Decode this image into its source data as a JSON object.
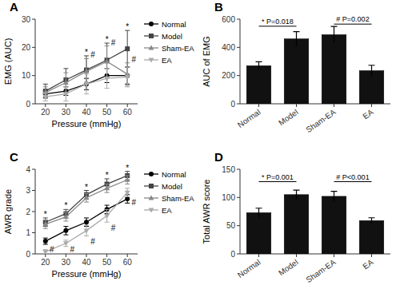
{
  "chart_data": [
    {
      "type": "line",
      "title": "A",
      "x": [
        20,
        30,
        40,
        50,
        60
      ],
      "xlim": [
        15,
        65
      ],
      "xticks": [
        20,
        30,
        40,
        50,
        60
      ],
      "ylim": [
        0,
        30
      ],
      "yticks": [
        0,
        10,
        20,
        30
      ],
      "x_label": "Pressure (mmHg)",
      "y_label": "EMG (AUC)",
      "legend": "right",
      "series": [
        {
          "name": "Normal",
          "color": "#000000",
          "marker": "circle",
          "values": [
            3.5,
            4.5,
            7.0,
            10.0,
            10.0
          ],
          "errors": [
            1.2,
            1.5,
            2.0,
            2.5,
            3.0
          ]
        },
        {
          "name": "Model",
          "color": "#444444",
          "marker": "square",
          "values": [
            4.5,
            8.5,
            12.0,
            15.5,
            19.5
          ],
          "errors": [
            2.5,
            4.0,
            5.0,
            6.0,
            6.5
          ]
        },
        {
          "name": "Sham-EA",
          "color": "#888888",
          "marker": "triangle-up",
          "values": [
            4.0,
            7.5,
            11.5,
            15.0,
            10.5
          ],
          "errors": [
            2.0,
            3.5,
            4.5,
            5.5,
            4.0
          ]
        },
        {
          "name": "EA",
          "color": "#aaaaaa",
          "marker": "triangle-down",
          "values": [
            2.5,
            3.5,
            7.0,
            9.0,
            9.5
          ],
          "errors": [
            1.5,
            2.5,
            3.5,
            3.5,
            3.5
          ]
        }
      ],
      "annotations": [
        {
          "text": "*",
          "x": 40,
          "series": "Model",
          "position": "above"
        },
        {
          "text": "*",
          "x": 50,
          "series": "Model",
          "position": "above"
        },
        {
          "text": "*",
          "x": 60,
          "series": "Model",
          "position": "above"
        },
        {
          "text": "#",
          "x": 40,
          "series": "Sham-EA",
          "position": "above"
        },
        {
          "text": "#",
          "x": 50,
          "series": "Sham-EA",
          "position": "above"
        },
        {
          "text": "#",
          "x": 60,
          "series": "Sham-EA",
          "position": "above"
        }
      ]
    },
    {
      "type": "bar",
      "title": "B",
      "categories": [
        "Normal",
        "Model",
        "Sham-EA",
        "EA"
      ],
      "values": [
        270,
        460,
        490,
        235
      ],
      "errors": [
        28,
        52,
        58,
        38
      ],
      "color": "#111111",
      "ylim": [
        0,
        600
      ],
      "yticks": [
        0,
        200,
        400,
        600
      ],
      "y_label": "AUC of EMG",
      "annotations": [
        {
          "text": "* P=0.018",
          "from": "Normal",
          "to": "Model",
          "y": 550
        },
        {
          "text": "# P=0.002",
          "from": "Sham-EA",
          "to": "EA",
          "y": 565
        }
      ]
    },
    {
      "type": "line",
      "title": "C",
      "x": [
        20,
        30,
        40,
        50,
        60
      ],
      "xlim": [
        15,
        65
      ],
      "xticks": [
        20,
        30,
        40,
        50,
        60
      ],
      "ylim": [
        0,
        4
      ],
      "yticks": [
        0,
        1,
        2,
        3,
        4
      ],
      "x_label": "Pressure (mmHg)",
      "y_label": "AWR grade",
      "legend": "right",
      "series": [
        {
          "name": "Normal",
          "color": "#000000",
          "marker": "circle",
          "values": [
            0.6,
            1.1,
            1.5,
            2.1,
            2.6
          ],
          "errors": [
            0.15,
            0.2,
            0.2,
            0.2,
            0.2
          ]
        },
        {
          "name": "Model",
          "color": "#444444",
          "marker": "square",
          "values": [
            1.5,
            1.9,
            2.8,
            3.3,
            3.7
          ],
          "errors": [
            0.2,
            0.2,
            0.2,
            0.25,
            0.2
          ]
        },
        {
          "name": "Sham-EA",
          "color": "#888888",
          "marker": "triangle-up",
          "values": [
            1.4,
            1.75,
            2.65,
            3.1,
            3.5
          ],
          "errors": [
            0.2,
            0.2,
            0.2,
            0.2,
            0.2
          ]
        },
        {
          "name": "EA",
          "color": "#aaaaaa",
          "marker": "triangle-down",
          "values": [
            0.1,
            0.5,
            1.1,
            1.8,
            2.9
          ],
          "errors": [
            0.1,
            0.15,
            0.25,
            0.3,
            0.2
          ]
        }
      ],
      "annotations": [
        {
          "text": "*",
          "x": 20,
          "series": "Model",
          "position": "above"
        },
        {
          "text": "*",
          "x": 30,
          "series": "Model",
          "position": "above"
        },
        {
          "text": "*",
          "x": 40,
          "series": "Model",
          "position": "above"
        },
        {
          "text": "*",
          "x": 50,
          "series": "Model",
          "position": "above"
        },
        {
          "text": "*",
          "x": 60,
          "series": "Model",
          "position": "above"
        },
        {
          "text": "#",
          "x": 20,
          "series": "EA",
          "position": "below"
        },
        {
          "text": "#",
          "x": 30,
          "series": "EA",
          "position": "below"
        },
        {
          "text": "#",
          "x": 40,
          "series": "EA",
          "position": "below"
        },
        {
          "text": "#",
          "x": 50,
          "series": "EA",
          "position": "below"
        },
        {
          "text": "#",
          "x": 60,
          "series": "EA",
          "position": "below"
        }
      ]
    },
    {
      "type": "bar",
      "title": "D",
      "categories": [
        "Normal",
        "Model",
        "Sham-EA",
        "EA"
      ],
      "values": [
        73,
        105,
        102,
        59
      ],
      "errors": [
        8,
        8,
        9,
        5
      ],
      "color": "#111111",
      "ylim": [
        0,
        150
      ],
      "yticks": [
        0,
        50,
        100,
        150
      ],
      "y_label": "Total AWR score",
      "annotations": [
        {
          "text": "* P=0.001",
          "from": "Normal",
          "to": "Model",
          "y": 128
        },
        {
          "text": "# P<0.001",
          "from": "Sham-EA",
          "to": "EA",
          "y": 128
        }
      ]
    }
  ]
}
